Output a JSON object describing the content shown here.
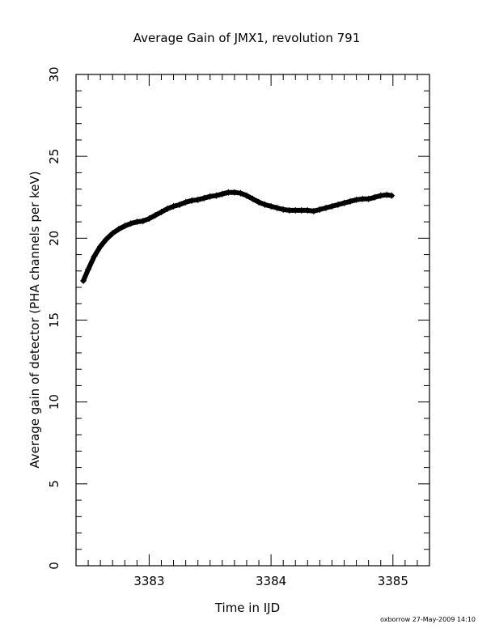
{
  "chart_data": {
    "type": "scatter",
    "title": "Average Gain of JMX1, revolution 791",
    "xlabel": "Time in IJD",
    "ylabel": "Average gain of detector (PHA channels per keV)",
    "xlim": [
      3382.4,
      3385.3
    ],
    "ylim": [
      0,
      30
    ],
    "x_ticks": [
      3383,
      3384,
      3385
    ],
    "y_ticks": [
      0,
      5,
      10,
      15,
      20,
      25,
      30
    ],
    "x_minor_step": 0.1,
    "y_minor_step": 1,
    "grid": false,
    "marker": "cross",
    "color": "#000000",
    "series": [
      {
        "x": [
          3382.46,
          3382.5,
          3382.55,
          3382.6,
          3382.65,
          3382.7,
          3382.75,
          3382.8,
          3382.85,
          3382.9,
          3382.95,
          3383.0,
          3383.05,
          3383.1,
          3383.15,
          3383.2,
          3383.25,
          3383.3,
          3383.35,
          3383.4,
          3383.45,
          3383.5,
          3383.55,
          3383.6,
          3383.65,
          3383.7,
          3383.75,
          3383.8,
          3383.85,
          3383.9,
          3383.95,
          3384.0,
          3384.05,
          3384.1,
          3384.15,
          3384.2,
          3384.25,
          3384.3,
          3384.35,
          3384.4,
          3384.45,
          3384.5,
          3384.55,
          3384.6,
          3384.65,
          3384.7,
          3384.75,
          3384.8,
          3384.85,
          3384.9,
          3384.95,
          3384.99
        ],
        "y": [
          17.4,
          18.1,
          18.9,
          19.5,
          19.95,
          20.3,
          20.55,
          20.75,
          20.9,
          21.0,
          21.05,
          21.2,
          21.4,
          21.6,
          21.8,
          21.95,
          22.05,
          22.2,
          22.3,
          22.35,
          22.45,
          22.55,
          22.6,
          22.7,
          22.8,
          22.8,
          22.75,
          22.6,
          22.4,
          22.2,
          22.05,
          21.95,
          21.85,
          21.75,
          21.7,
          21.7,
          21.7,
          21.7,
          21.65,
          21.75,
          21.85,
          21.95,
          22.05,
          22.15,
          22.25,
          22.35,
          22.4,
          22.4,
          22.5,
          22.6,
          22.65,
          22.6
        ]
      }
    ]
  },
  "footer": {
    "credit": "oxborrow 27-May-2009 14:10"
  }
}
